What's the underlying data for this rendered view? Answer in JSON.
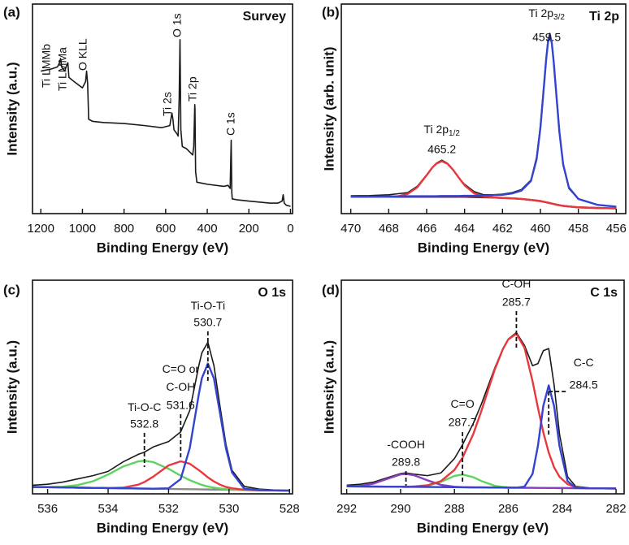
{
  "chart_data": [
    {
      "type": "line",
      "panel": "(a)",
      "title": "Survey",
      "xlabel": "Binding Energy (eV)",
      "ylabel": "Intensity (a.u.)",
      "x": [
        1200,
        1150,
        1120,
        1110,
        1105,
        1100,
        1085,
        1075,
        1070,
        1065,
        1040,
        1000,
        985,
        980,
        975,
        970,
        950,
        900,
        800,
        700,
        620,
        580,
        570,
        565,
        560,
        545,
        540,
        535,
        531,
        527,
        520,
        500,
        470,
        465,
        460,
        459,
        456,
        450,
        400,
        320,
        300,
        290,
        285,
        282,
        280,
        250,
        200,
        100,
        60,
        40,
        35,
        30,
        20,
        0
      ],
      "xlim": [
        1240,
        -10
      ],
      "xticks": [
        1200,
        1000,
        800,
        600,
        400,
        200,
        0
      ],
      "ylim": [
        0,
        100
      ],
      "series": [
        {
          "color": "#1a1a1a",
          "values": [
            68,
            69,
            70,
            72,
            74,
            70,
            68,
            71,
            72,
            65,
            63,
            60,
            63,
            68,
            62,
            45,
            44,
            43.5,
            43,
            42,
            41,
            42,
            48,
            45,
            40,
            38,
            37,
            55,
            83,
            40,
            32,
            31,
            28,
            32,
            52,
            50,
            20,
            15,
            14,
            13,
            13.5,
            12,
            35,
            10,
            7,
            6.5,
            6,
            5,
            5,
            6,
            9,
            5,
            4,
            3.5
          ]
        }
      ],
      "peak_labels": [
        "Ti LMMb",
        "Ti LMMa",
        "O KLL",
        "O 1s",
        "Ti 2s",
        "Ti 2p",
        "C 1s"
      ]
    },
    {
      "type": "line",
      "panel": "(b)",
      "title": "Ti 2p",
      "xlabel": "Binding Energy (eV)",
      "ylabel": "Intensity (arb. unit)",
      "x": [
        470,
        469,
        468,
        467.5,
        467,
        466.5,
        466,
        465.7,
        465.5,
        465.2,
        464.9,
        464.6,
        464.3,
        464,
        463.5,
        463,
        462.5,
        462,
        461.5,
        461,
        460.5,
        460.2,
        460,
        459.8,
        459.7,
        459.6,
        459.5,
        459.4,
        459.3,
        459.2,
        459,
        458.8,
        458.5,
        458,
        457,
        456
      ],
      "xlim": [
        470.5,
        455.5
      ],
      "xticks": [
        470,
        468,
        466,
        464,
        462,
        460,
        458,
        456
      ],
      "ylim": [
        0,
        100
      ],
      "series": [
        {
          "color": "#1a1a1a",
          "values": [
            8.5,
            8.6,
            9,
            9.5,
            10,
            13,
            18.5,
            22,
            24,
            25.5,
            24,
            21,
            17,
            14,
            10.5,
            9,
            9,
            9.3,
            10,
            11.5,
            16,
            27,
            42,
            63,
            74,
            83,
            86,
            82,
            73,
            62,
            40,
            23,
            12,
            7,
            4.2,
            3.3
          ]
        },
        {
          "color": "#7a2a2a",
          "values": [
            8,
            8,
            8,
            8,
            8,
            8,
            8,
            8,
            8,
            8,
            8,
            8,
            8,
            8,
            7.9,
            7.8,
            7.7,
            7.5,
            7.3,
            7,
            6.5,
            6.2,
            6,
            5.6,
            5.4,
            5.2,
            5,
            4.8,
            4.6,
            4.4,
            4,
            3.7,
            3.4,
            3,
            2.7,
            2.5
          ]
        },
        {
          "color": "#e8383d",
          "values": [
            8,
            8,
            8,
            8.3,
            9.4,
            12.5,
            18.3,
            22,
            23.8,
            25,
            23.8,
            20.8,
            17.1,
            13.5,
            9.7,
            8.2,
            7.7,
            7.5,
            7.3,
            7,
            6.5,
            6.2,
            6,
            5.6,
            5.4,
            5.2,
            5,
            4.8,
            4.6,
            4.4,
            4,
            3.7,
            3.4,
            3,
            2.7,
            2.5
          ]
        },
        {
          "color": "#3344d0",
          "values": [
            8.1,
            8.1,
            8.2,
            8.2,
            8.3,
            8.3,
            8.3,
            8.3,
            8.3,
            8.4,
            8.4,
            8.4,
            8.4,
            8.5,
            8.5,
            8.6,
            8.8,
            9,
            9.6,
            11,
            15.6,
            26,
            41,
            62.4,
            73.3,
            81.8,
            85,
            81.4,
            72.5,
            61.2,
            39,
            23.5,
            12.5,
            7,
            4.2,
            3.3
          ]
        }
      ],
      "annotations": [
        {
          "lines": [
            "Ti 2p"
          ],
          "sub": "1/2",
          "value": 465.2
        },
        {
          "lines": [
            "Ti 2p"
          ],
          "sub": "3/2",
          "value": 459.5
        }
      ]
    },
    {
      "type": "line",
      "panel": "(c)",
      "title": "O 1s",
      "xlabel": "Binding Energy (eV)",
      "ylabel": "Intensity (a.u.)",
      "x": [
        536.5,
        536,
        535.5,
        535,
        534.5,
        534,
        533.5,
        533,
        532.8,
        532.5,
        532,
        531.6,
        531.3,
        531,
        530.9,
        530.7,
        530.5,
        530.3,
        530.1,
        529.9,
        529.5,
        529,
        528.5,
        528
      ],
      "xlim": [
        536.5,
        527.9
      ],
      "xticks": [
        536,
        534,
        532,
        530,
        528
      ],
      "ylim": [
        0,
        100
      ],
      "series": [
        {
          "color": "#1a1a1a",
          "values": [
            4,
            4.5,
            5.5,
            7,
            8.5,
            10.5,
            15,
            18.5,
            19.5,
            22,
            24.5,
            29,
            39,
            60,
            66,
            71,
            60,
            41,
            23,
            11,
            3.5,
            2.2,
            1.8,
            1.6
          ]
        },
        {
          "color": "#8a8a8a",
          "values": [
            3.2,
            3.1,
            3,
            2.9,
            2.8,
            2.7,
            2.6,
            2.5,
            2.46,
            2.4,
            2.3,
            2.22,
            2.16,
            2.1,
            2.08,
            2.04,
            2,
            1.96,
            1.92,
            1.88,
            1.8,
            1.7,
            1.6,
            1.5
          ]
        },
        {
          "color": "#5fd35f",
          "values": [
            3.2,
            3.2,
            3.3,
            4.1,
            5.9,
            9,
            12.8,
            15.2,
            15.5,
            14.8,
            11.7,
            8.5,
            6.4,
            4.7,
            4.2,
            3.4,
            2.9,
            2.5,
            2.2,
            2,
            1.8,
            1.7,
            1.6,
            1.5
          ]
        },
        {
          "color": "#e8383d",
          "values": [
            3.2,
            3.1,
            3,
            2.9,
            2.8,
            2.7,
            2.9,
            4.3,
            5.5,
            8.1,
            13.3,
            15.2,
            14.1,
            11.1,
            10,
            7.7,
            5.8,
            4.3,
            3.2,
            2.6,
            1.9,
            1.7,
            1.6,
            1.5
          ]
        },
        {
          "color": "#3344d0",
          "values": [
            3.2,
            3.1,
            3,
            2.9,
            2.8,
            2.7,
            2.6,
            2.5,
            2.46,
            2.4,
            2.6,
            6.9,
            21.4,
            46.6,
            54.1,
            61,
            54,
            37.8,
            21.1,
            9.9,
            2.45,
            1.7,
            1.6,
            1.5
          ]
        }
      ],
      "annotations": [
        {
          "lines": [
            "Ti-O-C"
          ],
          "value": 532.8
        },
        {
          "lines": [
            "C=O or",
            "C-OH"
          ],
          "value": 531.6
        },
        {
          "lines": [
            "Ti-O-Ti"
          ],
          "value": 530.7
        }
      ]
    },
    {
      "type": "line",
      "panel": "(d)",
      "title": "C 1s",
      "xlabel": "Binding Energy (eV)",
      "ylabel": "Intensity (a.u.)",
      "x": [
        292,
        291.5,
        291,
        290.5,
        290,
        289.8,
        289.5,
        289,
        288.5,
        288,
        287.7,
        287.3,
        287,
        286.5,
        286.2,
        286,
        285.7,
        285.4,
        285.1,
        284.9,
        284.7,
        284.5,
        284.3,
        284.1,
        283.8,
        283.5,
        283,
        282.5,
        282
      ],
      "xlim": [
        292.2,
        281.7
      ],
      "xticks": [
        292,
        290,
        288,
        286,
        284,
        282
      ],
      "ylim": [
        0,
        100
      ],
      "series": [
        {
          "color": "#1a1a1a",
          "values": [
            4,
            4.5,
            5.5,
            7.5,
            9.5,
            9.8,
            9.2,
            8.5,
            9.8,
            16.5,
            23,
            33,
            42,
            59,
            68,
            72.5,
            75.5,
            69.5,
            60,
            61,
            67,
            68,
            51,
            28,
            8,
            3.5,
            2.8,
            2.6,
            2.5
          ]
        },
        {
          "color": "#5fd35f",
          "values": [
            3.5,
            3.45,
            3.4,
            3.35,
            3.3,
            3.28,
            3.32,
            3.77,
            5.6,
            8.4,
            9.07,
            7.8,
            6,
            3.75,
            3.2,
            3,
            2.87,
            2.84,
            2.81,
            2.79,
            2.77,
            2.75,
            2.73,
            2.71,
            2.68,
            2.65,
            2.6,
            2.55,
            2.5
          ]
        },
        {
          "color": "#8a3fc0",
          "values": [
            3.5,
            3.75,
            4.8,
            7,
            9.1,
            9.3,
            8.7,
            6.3,
            4.2,
            3.3,
            3.1,
            3.03,
            3,
            2.95,
            2.92,
            2.9,
            2.87,
            2.84,
            2.81,
            2.79,
            2.77,
            2.75,
            2.73,
            2.71,
            2.68,
            2.65,
            2.6,
            2.55,
            2.5
          ]
        },
        {
          "color": "#e8383d",
          "values": [
            3.5,
            3.45,
            3.4,
            3.35,
            3.3,
            3.28,
            3.45,
            4,
            5.95,
            11.2,
            16.9,
            28,
            38.8,
            58.3,
            67.8,
            72.3,
            74.9,
            68.4,
            52.7,
            40.3,
            28.8,
            19.35,
            12.4,
            8,
            4.5,
            3.15,
            2.6,
            2.55,
            2.5
          ]
        },
        {
          "color": "#3344d0",
          "values": [
            3.5,
            3.45,
            3.4,
            3.35,
            3.3,
            3.28,
            3.25,
            3.2,
            3.15,
            3.1,
            3.07,
            3.03,
            3,
            2.95,
            2.92,
            2.9,
            2.89,
            3.35,
            9.3,
            22.5,
            41.2,
            50.75,
            41.1,
            22.4,
            5.9,
            2.85,
            2.6,
            2.55,
            2.5
          ]
        }
      ],
      "annotations": [
        {
          "lines": [
            "-COOH"
          ],
          "value": 289.8
        },
        {
          "lines": [
            "C=O"
          ],
          "value": 287.7
        },
        {
          "lines": [
            "C-OH"
          ],
          "value": 285.7
        },
        {
          "lines": [
            "C-C"
          ],
          "value": 284.5
        }
      ]
    }
  ]
}
